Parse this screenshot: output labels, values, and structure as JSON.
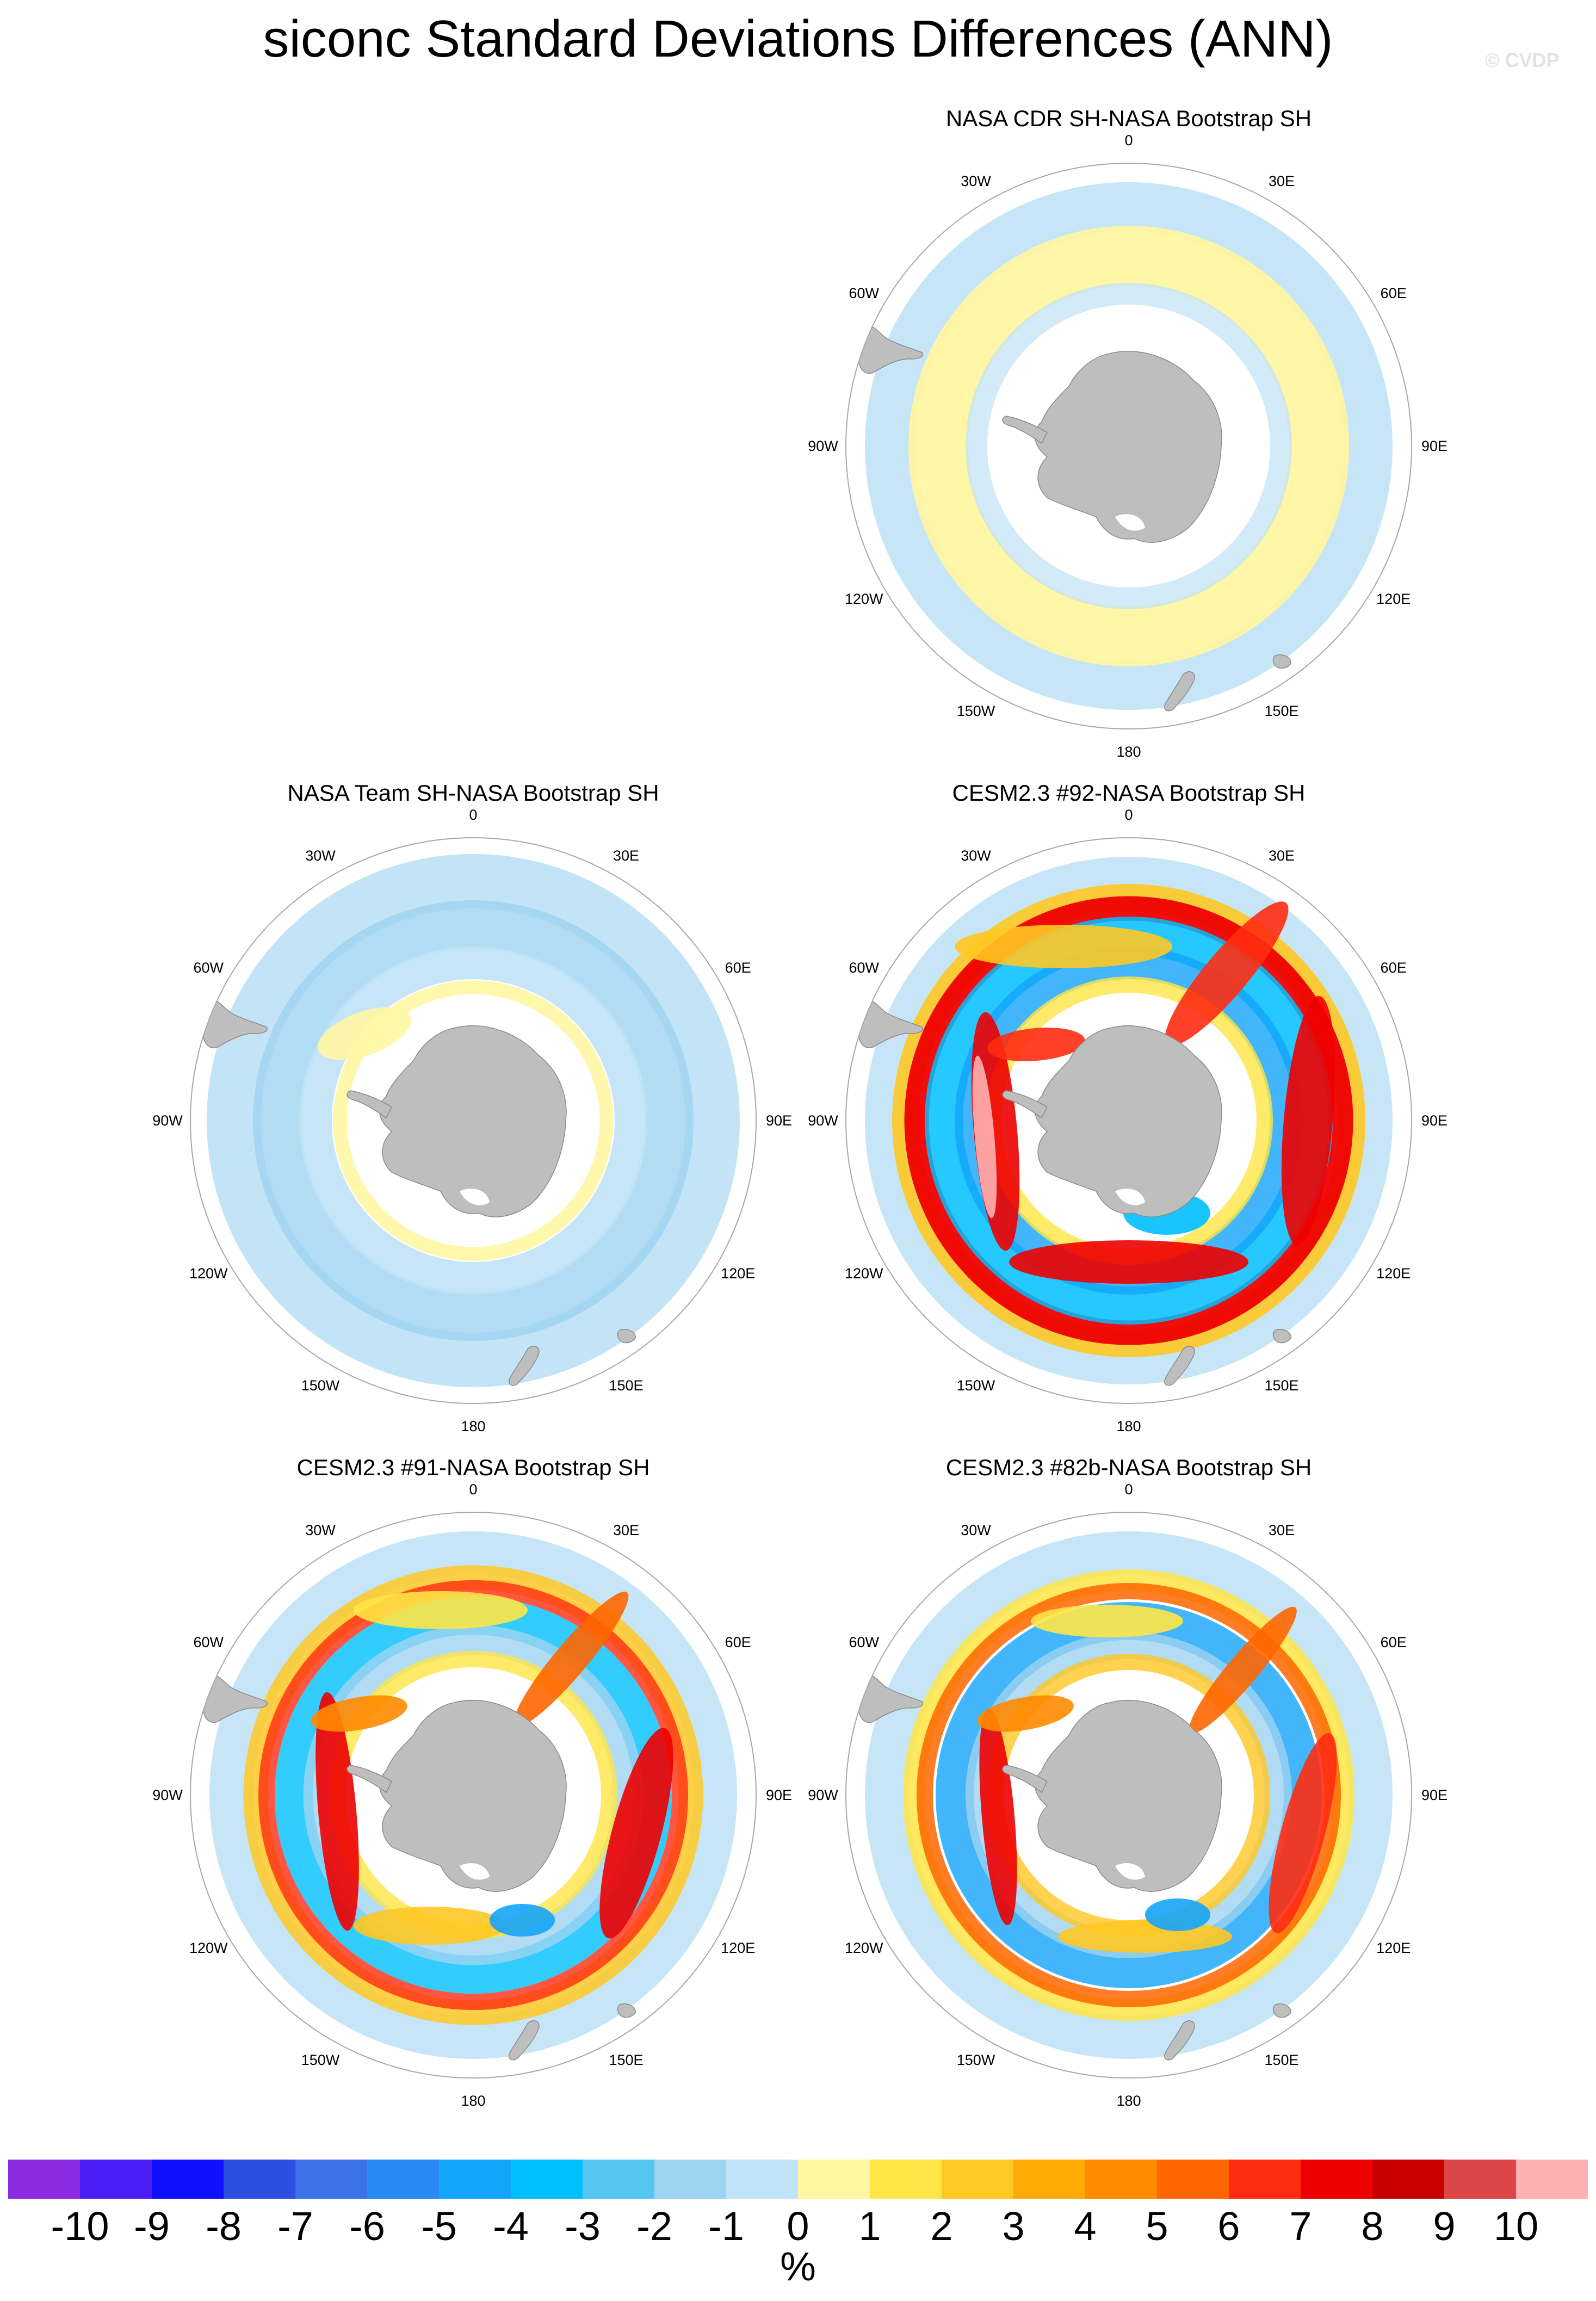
{
  "title": "siconc Standard Deviations Differences (ANN)",
  "watermark": "© CVDP",
  "longitude_labels": [
    "0",
    "30E",
    "60E",
    "90E",
    "120E",
    "150E",
    "180",
    "150W",
    "120W",
    "90W",
    "60W",
    "30W"
  ],
  "panels": [
    {
      "title": "NASA CDR SH-NASA Bootstrap SH",
      "pattern": "weak-positive"
    },
    {
      "title": "NASA Team SH-NASA Bootstrap SH",
      "pattern": "weak-negative"
    },
    {
      "title": "CESM2.3 #92-NASA Bootstrap SH",
      "pattern": "strong-ring"
    },
    {
      "title": "CESM2.3 #91-NASA Bootstrap SH",
      "pattern": "moderate-ring"
    },
    {
      "title": "CESM2.3 #82b-NASA Bootstrap SH",
      "pattern": "moderate-ring-b"
    }
  ],
  "colorbar": {
    "units": "%",
    "labels": [
      "-10",
      "-9",
      "-8",
      "-7",
      "-6",
      "-5",
      "-4",
      "-3",
      "-2",
      "-1",
      "0",
      "1",
      "2",
      "3",
      "4",
      "5",
      "6",
      "7",
      "8",
      "9",
      "10"
    ],
    "colors": [
      "#8A2BE2",
      "#4B1EF5",
      "#1010FF",
      "#2C4FE0",
      "#3B72E8",
      "#2A8AF5",
      "#14A4FA",
      "#00BFFF",
      "#55C5F2",
      "#9DD3F0",
      "#C0E3F7",
      "#FFF6A2",
      "#FFE545",
      "#FFC824",
      "#FFAA05",
      "#FF8A00",
      "#FF6600",
      "#FF2C12",
      "#EE0000",
      "#C80000",
      "#DC4646",
      "#FFB1B1"
    ]
  },
  "land_color": "#BEBEBE"
}
